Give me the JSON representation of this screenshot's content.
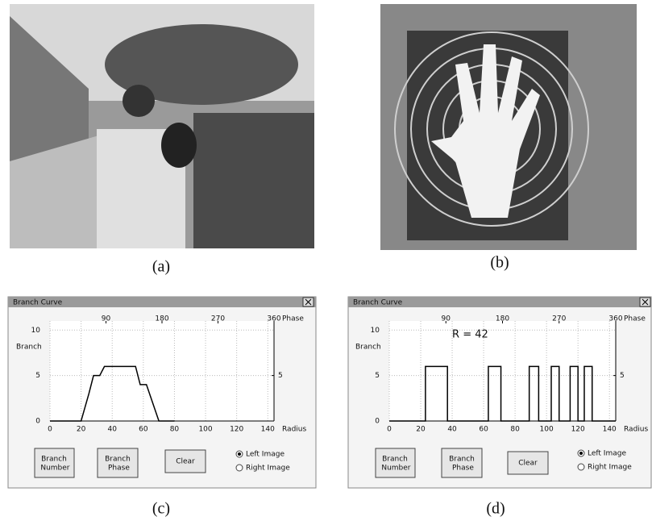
{
  "figure": {
    "labels": [
      "(a)",
      "(b)",
      "(c)",
      "(d)"
    ]
  },
  "windows": [
    {
      "title": "Branch Curve",
      "buttons": [
        "Branch Number",
        "Branch Phase",
        "Clear"
      ],
      "radios": [
        "Left Image",
        "Right Image"
      ]
    },
    {
      "title": "Branch Curve",
      "buttons": [
        "Branch Number",
        "Branch Phase",
        "Clear"
      ],
      "radios": [
        "Left Image",
        "Right Image"
      ]
    }
  ],
  "chart_data": [
    {
      "type": "line",
      "xlabel": "Radius",
      "ylabel": "Branch",
      "x2label": "Phase",
      "xlim": [
        0,
        144
      ],
      "xticks": [
        0,
        20,
        40,
        60,
        80,
        100,
        120,
        140
      ],
      "x2lim": [
        0,
        360
      ],
      "x2ticks": [
        90,
        180,
        270,
        360
      ],
      "ylim": [
        0,
        11
      ],
      "yticks": [
        0,
        5,
        10
      ],
      "y2lim": [
        0,
        11
      ],
      "y2ticks": [
        5
      ],
      "grid": true,
      "series": [
        {
          "color": "#000000",
          "x": [
            0,
            20,
            25,
            28,
            32,
            35,
            55,
            58,
            62,
            70,
            80
          ],
          "values": [
            0,
            0,
            3,
            5,
            5,
            6,
            6,
            4,
            4,
            0,
            0
          ]
        }
      ]
    },
    {
      "type": "line",
      "xlabel": "Radius",
      "ylabel": "Branch",
      "x2label": "Phase",
      "annotation": "R = 42",
      "xlim": [
        0,
        144
      ],
      "xticks": [
        0,
        20,
        40,
        60,
        80,
        100,
        120,
        140
      ],
      "x2lim": [
        0,
        360
      ],
      "x2ticks": [
        90,
        180,
        270,
        360
      ],
      "ylim": [
        0,
        11
      ],
      "yticks": [
        0,
        5,
        10
      ],
      "y2lim": [
        0,
        11
      ],
      "y2ticks": [
        5
      ],
      "grid": true,
      "series": [
        {
          "color": "#000000",
          "x": [
            0,
            23,
            23,
            37,
            37,
            63,
            63,
            71,
            71,
            89,
            89,
            95,
            95,
            103,
            103,
            108,
            108,
            115,
            115,
            120,
            120,
            124,
            124,
            129,
            129,
            144
          ],
          "values": [
            0,
            0,
            6,
            6,
            0,
            0,
            6,
            6,
            0,
            0,
            6,
            6,
            0,
            0,
            6,
            6,
            0,
            0,
            6,
            6,
            0,
            0,
            6,
            6,
            0,
            0
          ]
        }
      ]
    }
  ]
}
